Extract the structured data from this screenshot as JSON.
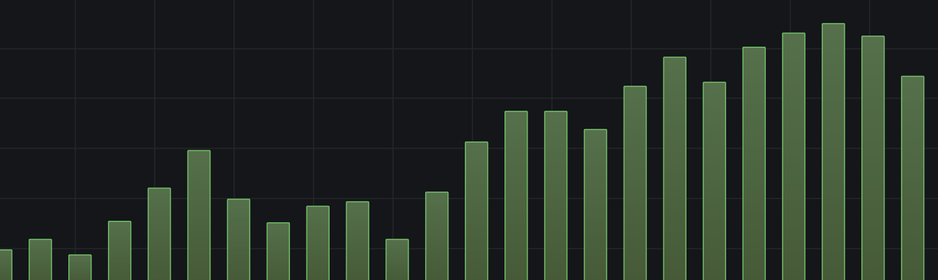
{
  "chart_data": {
    "type": "bar",
    "title": "",
    "xlabel": "",
    "ylabel": "",
    "grid": true,
    "values": [
      0.6,
      0.81,
      0.5,
      1.17,
      1.83,
      2.58,
      1.61,
      1.14,
      1.47,
      1.56,
      0.81,
      1.75,
      2.75,
      3.36,
      3.36,
      3.0,
      3.86,
      4.44,
      3.94,
      4.64,
      4.92,
      5.11,
      4.86,
      4.06
    ],
    "ylim": [
      0,
      5.58
    ],
    "colors": {
      "background": "#141619",
      "bar_fill": "#4b6140",
      "bar_stroke": "#73bf69",
      "grid": "#24272b"
    }
  }
}
